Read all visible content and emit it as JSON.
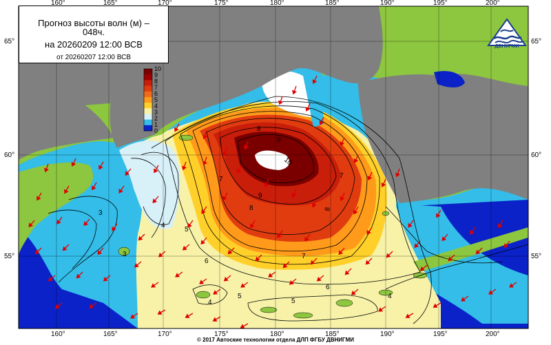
{
  "map": {
    "title_line1": "Прогноз высоты волн (м) –",
    "title_line1b": "048ч.",
    "title_line2": "на 20260209 12:00 ВСВ",
    "title_line3": "от 20260207 12:00 ВСВ",
    "logo_text": "ДВНИГМИ",
    "copyright": "© 2017 Автоские технологии отдела ДЛП ФГБУ ДВНИГМИ",
    "lon_labels": [
      "160°",
      "165°",
      "170°",
      "175°",
      "180°",
      "185°",
      "190°",
      "195°",
      "200°"
    ],
    "lat_labels": [
      "65°",
      "60°",
      "55°"
    ],
    "legend_values": [
      "10",
      "9",
      "8",
      "7",
      "6",
      "5",
      "4",
      "3",
      "2",
      "1",
      "0"
    ],
    "legend_colors": [
      "#7a0000",
      "#a00000",
      "#c81e0a",
      "#e03c10",
      "#f06b1a",
      "#ff9a1a",
      "#ffd02a",
      "#f7f2a8",
      "#d8f0f8",
      "#33bde8",
      "#0a22c8"
    ],
    "contour_labels": [
      "10",
      "9",
      "9",
      "8",
      "8",
      "8",
      "7",
      "7",
      "7",
      "6",
      "6",
      "5",
      "5",
      "5",
      "4",
      "4",
      "4",
      "3",
      "3"
    ],
    "colors": {
      "land": "#8dc63f",
      "ice": "#808080",
      "sea_deep_blue": "#0a22c8",
      "sea_light": "#33bde8",
      "sea_pale": "#f7f2a8",
      "sea_yellow": "#ffd02a",
      "sea_orange": "#ff9a1a",
      "sea_red": "#e03c10",
      "sea_dark_red": "#a00000",
      "arrow": "#e00000"
    }
  }
}
